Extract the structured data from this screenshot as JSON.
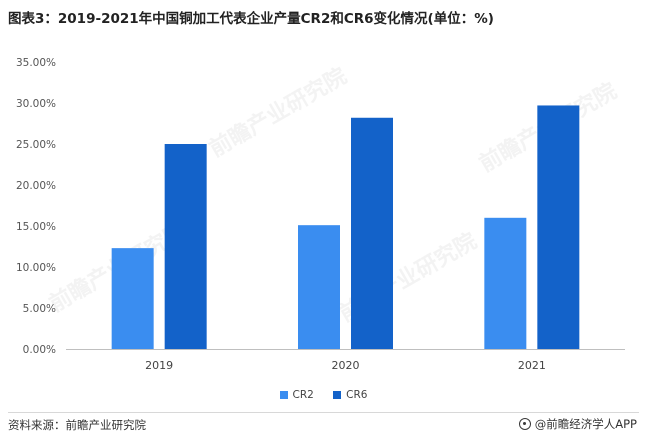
{
  "title": "图表3：2019-2021年中国铜加工代表企业产量CR2和CR6变化情况(单位：%)",
  "source": "资料来源：前瞻产业研究院",
  "brand": "@前瞻经济学人APP",
  "watermark": "前瞻产业研究院",
  "colors": {
    "CR2": "#3a8df0",
    "CR6": "#1362c9"
  },
  "chart_data": {
    "type": "bar",
    "categories": [
      "2019",
      "2020",
      "2021"
    ],
    "series": [
      {
        "name": "CR2",
        "values": [
          12.3,
          15.1,
          16.0
        ]
      },
      {
        "name": "CR6",
        "values": [
          25.0,
          28.2,
          29.7
        ]
      }
    ],
    "ylim": [
      0,
      35
    ],
    "yticks": [
      "0.00%",
      "5.00%",
      "10.00%",
      "15.00%",
      "20.00%",
      "25.00%",
      "30.00%",
      "35.00%"
    ],
    "grid": false,
    "legend": "bottom"
  }
}
